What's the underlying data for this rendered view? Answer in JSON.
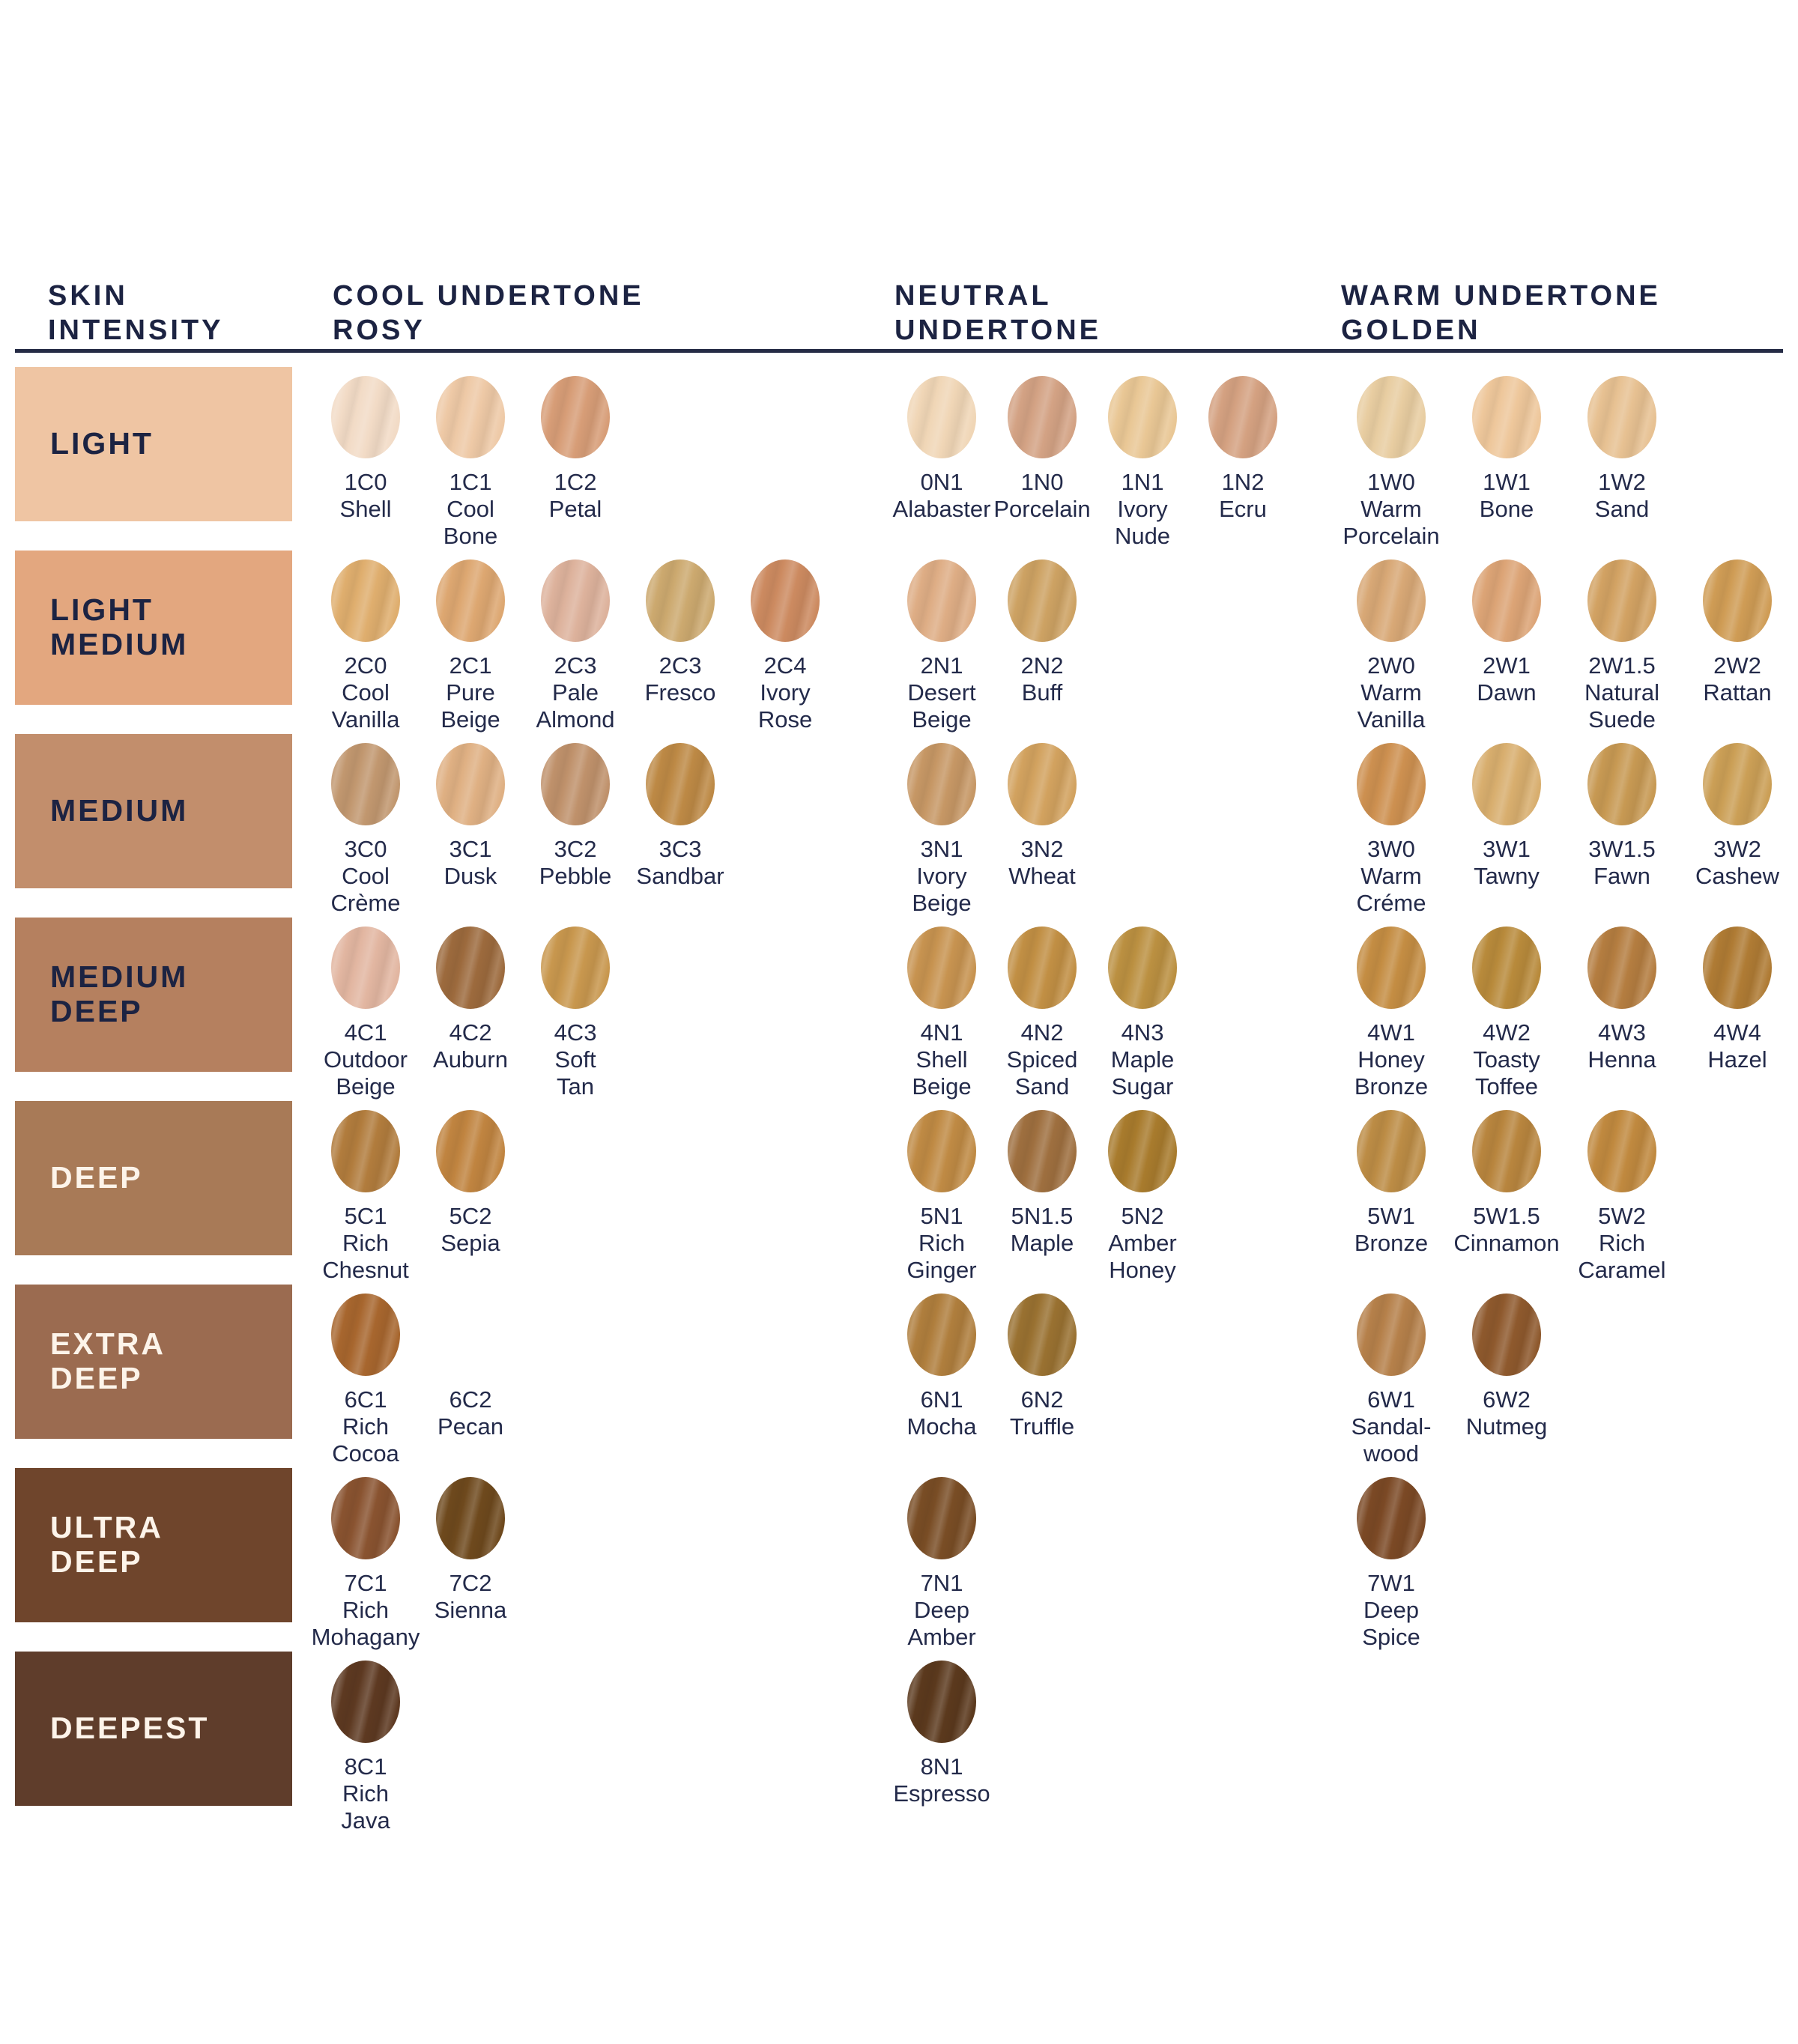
{
  "header": {
    "skin_intensity": "SKIN\nINTENSITY",
    "cool": "COOL UNDERTONE\nROSY",
    "neutral": "NEUTRAL\nUNDERTONE",
    "warm": "WARM UNDERTONE\nGOLDEN",
    "text_color": "#1c2342",
    "rule_color": "#252b45"
  },
  "rows": [
    {
      "intensity": {
        "label": "LIGHT",
        "bg": "#efc5a3",
        "fg": "#1c2342"
      },
      "cool": [
        {
          "code": "1C0",
          "name": "Shell",
          "color": "#f2dbc6"
        },
        {
          "code": "1C1",
          "name": "Cool Bone",
          "color": "#eec9a6"
        },
        {
          "code": "1C2",
          "name": "Petal",
          "color": "#d79d77"
        }
      ],
      "neutral": [
        {
          "code": "0N1",
          "name": "Alabaster",
          "color": "#f0d6b6"
        },
        {
          "code": "1N0",
          "name": "Porcelain",
          "color": "#d3a284"
        },
        {
          "code": "1N1",
          "name": "Ivory Nude",
          "color": "#e9c795"
        },
        {
          "code": "1N2",
          "name": "Ecru",
          "color": "#d4a181"
        }
      ],
      "warm": [
        {
          "code": "1W0",
          "name": "Warm Porcelain",
          "color": "#e8cda1"
        },
        {
          "code": "1W1",
          "name": "Bone",
          "color": "#eec79b"
        },
        {
          "code": "1W2",
          "name": "Sand",
          "color": "#e7c192"
        }
      ]
    },
    {
      "intensity": {
        "label": "LIGHT\nMEDIUM",
        "bg": "#e3a77f",
        "fg": "#1c2342"
      },
      "cool": [
        {
          "code": "2C0",
          "name": "Cool Vanilla",
          "color": "#dfae6e"
        },
        {
          "code": "2C1",
          "name": "Pure Beige",
          "color": "#dda771"
        },
        {
          "code": "2C3",
          "name": "Pale Almond",
          "color": "#ddb29c"
        },
        {
          "code": "2C3",
          "name": "Fresco",
          "color": "#cca96f"
        },
        {
          "code": "2C4",
          "name": "Ivory Rose",
          "color": "#cc8a60"
        }
      ],
      "neutral": [
        {
          "code": "2N1",
          "name": "Desert Beige",
          "color": "#dead85"
        },
        {
          "code": "2N2",
          "name": "Buff",
          "color": "#cda263"
        }
      ],
      "warm": [
        {
          "code": "2W0",
          "name": "Warm Vanilla",
          "color": "#d8a876"
        },
        {
          "code": "2W1",
          "name": "Dawn",
          "color": "#dca476"
        },
        {
          "code": "2W1.5",
          "name": "Natural Suede",
          "color": "#d2a263"
        },
        {
          "code": "2W2",
          "name": "Rattan",
          "color": "#cf9c55"
        }
      ]
    },
    {
      "intensity": {
        "label": "MEDIUM",
        "bg": "#c28e6c",
        "fg": "#1c2342"
      },
      "cool": [
        {
          "code": "3C0",
          "name": "Cool Crème",
          "color": "#c1976f"
        },
        {
          "code": "3C1",
          "name": "Dusk",
          "color": "#dfb083"
        },
        {
          "code": "3C2",
          "name": "Pebble",
          "color": "#bf916b"
        },
        {
          "code": "3C3",
          "name": "Sandbar",
          "color": "#bd8945"
        }
      ],
      "neutral": [
        {
          "code": "3N1",
          "name": "Ivory Beige",
          "color": "#c69765"
        },
        {
          "code": "3N2",
          "name": "Wheat",
          "color": "#d2a25f"
        }
      ],
      "warm": [
        {
          "code": "3W0",
          "name": "Warm Créme",
          "color": "#cd9050"
        },
        {
          "code": "3W1",
          "name": "Tawny",
          "color": "#d8ae6e"
        },
        {
          "code": "3W1.5",
          "name": "Fawn",
          "color": "#c79953"
        },
        {
          "code": "3W2",
          "name": "Cashew",
          "color": "#cb9f56"
        }
      ]
    },
    {
      "intensity": {
        "label": "MEDIUM\nDEEP",
        "bg": "#b5805f",
        "fg": "#1c2342"
      },
      "cool": [
        {
          "code": "4C1",
          "name": "Outdoor Beige",
          "color": "#e2b6a1"
        },
        {
          "code": "4C2",
          "name": "Auburn",
          "color": "#9c6a3d"
        },
        {
          "code": "4C3",
          "name": "Soft Tan",
          "color": "#c8974e"
        }
      ],
      "neutral": [
        {
          "code": "4N1",
          "name": "Shell Beige",
          "color": "#c79350"
        },
        {
          "code": "4N2",
          "name": "Spiced Sand",
          "color": "#c18f44"
        },
        {
          "code": "4N3",
          "name": "Maple Sugar",
          "color": "#bb9041"
        }
      ],
      "warm": [
        {
          "code": "4W1",
          "name": "Honey Bronze",
          "color": "#c48d43"
        },
        {
          "code": "4W2",
          "name": "Toasty Toffee",
          "color": "#b88a3b"
        },
        {
          "code": "4W3",
          "name": "Henna",
          "color": "#b47d40"
        },
        {
          "code": "4W4",
          "name": "Hazel",
          "color": "#af7b34"
        }
      ]
    },
    {
      "intensity": {
        "label": "DEEP",
        "bg": "#a87a57",
        "fg": "#fdf4ea"
      },
      "cool": [
        {
          "code": "5C1",
          "name": "Rich Chesnut",
          "color": "#b17c3d"
        },
        {
          "code": "5C2",
          "name": "Sepia",
          "color": "#c08440"
        }
      ],
      "neutral": [
        {
          "code": "5N1",
          "name": "Rich Ginger",
          "color": "#bf8a44"
        },
        {
          "code": "5N1.5",
          "name": "Maple",
          "color": "#9e6f3f"
        },
        {
          "code": "5N2",
          "name": "Amber Honey",
          "color": "#a87b2d"
        }
      ],
      "warm": [
        {
          "code": "5W1",
          "name": "Bronze",
          "color": "#bc8c45"
        },
        {
          "code": "5W1.5",
          "name": "Cinnamon",
          "color": "#b8853e"
        },
        {
          "code": "5W2",
          "name": "Rich Caramel",
          "color": "#c0893f"
        }
      ]
    },
    {
      "intensity": {
        "label": "EXTRA\nDEEP",
        "bg": "#9b6b50",
        "fg": "#fdf4ea"
      },
      "cool": [
        {
          "code": "6C1",
          "name": "Rich Cocoa",
          "color": "#a7662e"
        },
        {
          "code": "6C2",
          "name": "Pecan",
          "color": null
        }
      ],
      "neutral": [
        {
          "code": "6N1",
          "name": "Mocha",
          "color": "#af7e3d"
        },
        {
          "code": "6N2",
          "name": "Truffle",
          "color": "#997131"
        }
      ],
      "warm": [
        {
          "code": "6W1",
          "name": "Sandal-wood",
          "color": "#b5804a"
        },
        {
          "code": "6W2",
          "name": "Nutmeg",
          "color": "#8e592d"
        }
      ]
    },
    {
      "intensity": {
        "label": "ULTRA\nDEEP",
        "bg": "#6f452c",
        "fg": "#fdf4ea"
      },
      "cool": [
        {
          "code": "7C1",
          "name": "Rich Mohagany",
          "color": "#895330"
        },
        {
          "code": "7C2",
          "name": "Sienna",
          "color": "#6e491d"
        }
      ],
      "neutral": [
        {
          "code": "7N1",
          "name": "Deep Amber",
          "color": "#794d25"
        }
      ],
      "warm": [
        {
          "code": "7W1",
          "name": "Deep Spice",
          "color": "#7b4925"
        }
      ]
    },
    {
      "intensity": {
        "label": "DEEPEST",
        "bg": "#5f3d2b",
        "fg": "#fdf4ea"
      },
      "cool": [
        {
          "code": "8C1",
          "name": "Rich Java",
          "color": "#5d3921"
        }
      ],
      "neutral": [
        {
          "code": "8N1",
          "name": "Espresso",
          "color": "#5b391d"
        }
      ],
      "warm": []
    }
  ]
}
